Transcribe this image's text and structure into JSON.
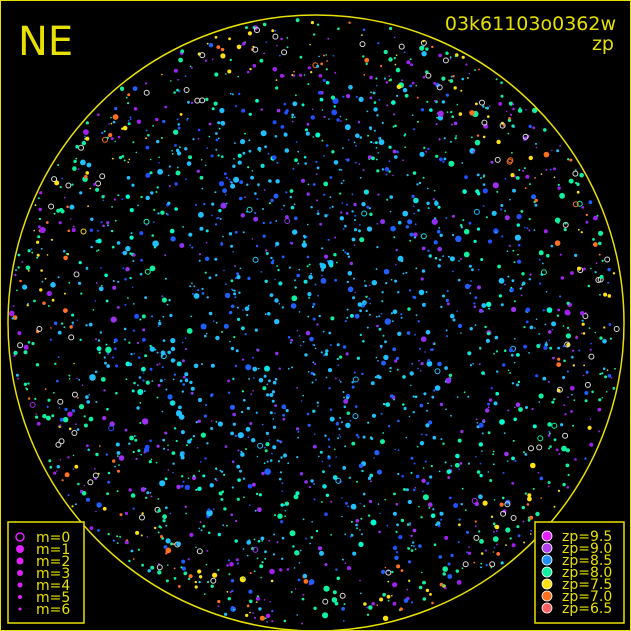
{
  "chart_data": {
    "type": "scatter",
    "title": "NE",
    "frame_id": "03k61103o0362w",
    "color_key_label": "zp",
    "projection": "all-sky circle",
    "colors": {
      "frame": "#e8e000",
      "horizon": "#e8e000",
      "text": "#e8e000",
      "background": "#000000"
    },
    "size_legend": [
      {
        "label": "m=0",
        "style": "ring"
      },
      {
        "label": "m=1",
        "style": "dot"
      },
      {
        "label": "m=2",
        "style": "dot"
      },
      {
        "label": "m=3",
        "style": "dot"
      },
      {
        "label": "m=4",
        "style": "dot"
      },
      {
        "label": "m=5",
        "style": "dot"
      },
      {
        "label": "m=6",
        "style": "dot"
      }
    ],
    "color_legend": [
      {
        "label": "zp=9.5",
        "color": "#e020ff"
      },
      {
        "label": "zp=9.0",
        "color": "#b040f0"
      },
      {
        "label": "zp=8.5",
        "color": "#2090ff"
      },
      {
        "label": "zp=8.0",
        "color": "#10f0a0"
      },
      {
        "label": "zp=7.5",
        "color": "#ffe010"
      },
      {
        "label": "zp=7.0",
        "color": "#ff7020"
      },
      {
        "label": "zp=6.5",
        "color": "#ff6060"
      }
    ]
  }
}
